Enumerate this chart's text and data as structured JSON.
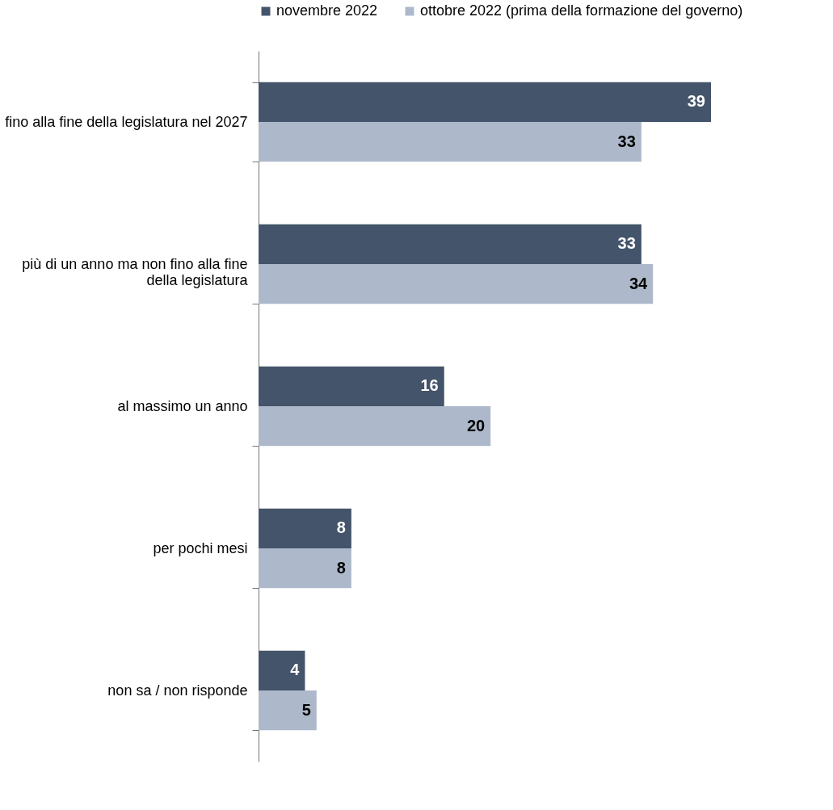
{
  "chart_data": {
    "type": "bar",
    "orientation": "horizontal",
    "data_labels": true,
    "legend": "top",
    "grid": false,
    "categories": [
      "fino alla fine della legislatura nel 2027",
      "più di un anno ma non fino alla fine della legislatura",
      "al massimo un anno",
      "per pochi mesi",
      "non sa / non risponde"
    ],
    "series": [
      {
        "name": "novembre 2022",
        "color": "#44546a",
        "values": [
          39,
          33,
          16,
          8,
          4
        ]
      },
      {
        "name": "ottobre 2022 (prima della formazione del governo)",
        "color": "#adb9ca",
        "values": [
          33,
          34,
          20,
          8,
          5
        ]
      }
    ]
  }
}
